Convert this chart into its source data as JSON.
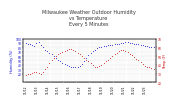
{
  "title": "Milwaukee Weather Outdoor Humidity\nvs Temperature\nEvery 5 Minutes",
  "title_fontsize": 3.5,
  "background_color": "#ffffff",
  "grid_color": "#cccccc",
  "humidity_color": "#0000cc",
  "temp_color": "#cc0000",
  "humidity_label": "Humidity (%)",
  "temp_label": "Temp (F)",
  "ylabel_fontsize": 2.5,
  "tick_fontsize": 2.2,
  "ylim_humidity": [
    0,
    100
  ],
  "ylim_temp": [
    20,
    70
  ],
  "time_points": [
    0,
    1,
    2,
    3,
    4,
    5,
    6,
    7,
    8,
    9,
    10,
    11,
    12,
    13,
    14,
    15,
    16,
    17,
    18,
    19,
    20,
    21,
    22,
    23,
    24,
    25,
    26,
    27,
    28,
    29,
    30,
    31,
    32,
    33,
    34,
    35,
    36,
    37,
    38,
    39,
    40,
    41,
    42,
    43,
    44,
    45,
    46,
    47,
    48,
    49,
    50,
    51,
    52,
    53,
    54,
    55,
    56,
    57,
    58,
    59
  ],
  "humidity": [
    90,
    88,
    87,
    85,
    83,
    90,
    92,
    85,
    80,
    75,
    72,
    68,
    65,
    60,
    55,
    52,
    48,
    45,
    42,
    40,
    38,
    36,
    35,
    34,
    35,
    38,
    42,
    48,
    55,
    62,
    68,
    72,
    75,
    78,
    80,
    82,
    83,
    84,
    85,
    85,
    86,
    87,
    88,
    89,
    90,
    91,
    92,
    92,
    91,
    90,
    89,
    88,
    87,
    86,
    85,
    84,
    83,
    82,
    81,
    80
  ],
  "temperature": [
    28,
    29,
    30,
    31,
    32,
    32,
    31,
    30,
    32,
    35,
    38,
    42,
    45,
    48,
    50,
    52,
    54,
    55,
    56,
    57,
    58,
    58,
    57,
    56,
    54,
    52,
    50,
    48,
    46,
    44,
    42,
    40,
    38,
    38,
    39,
    40,
    42,
    44,
    46,
    48,
    50,
    52,
    54,
    56,
    57,
    57,
    56,
    55,
    53,
    51,
    49,
    47,
    45,
    43,
    41,
    39,
    38,
    37,
    36,
    35
  ],
  "xtick_labels": [
    "11/12",
    "",
    "",
    "",
    "",
    "11/13",
    "",
    "",
    "",
    "",
    "11/14",
    "",
    "",
    "",
    "",
    "11/15",
    "",
    "",
    "",
    "",
    "11/16",
    "",
    "",
    "",
    "",
    "11/17",
    "",
    "",
    "",
    "",
    "11/18",
    "",
    "",
    "",
    "",
    "11/19",
    "",
    "",
    "",
    "",
    "11/20",
    "",
    "",
    "",
    "",
    "11/21",
    "",
    "",
    "",
    "",
    "11/22",
    "",
    "",
    "",
    "",
    "11/23",
    "",
    "",
    ""
  ],
  "yticks_left": [
    20,
    30,
    40,
    50,
    60,
    70,
    80,
    90,
    100
  ],
  "yticks_right": [
    20,
    30,
    40,
    50,
    60,
    70
  ]
}
